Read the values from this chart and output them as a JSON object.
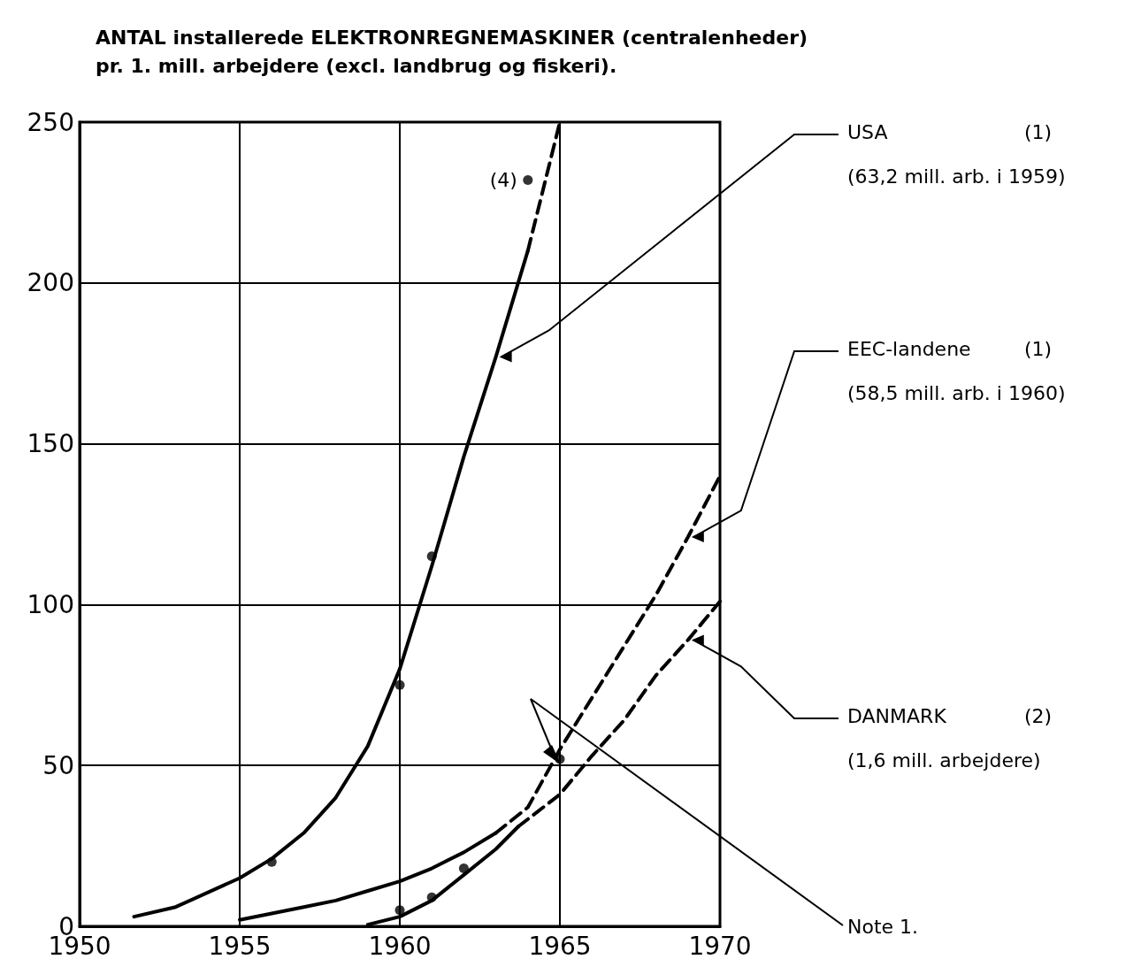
{
  "chart_data": {
    "type": "line",
    "ylabel": "ANTAL installerede ELEKTRONREGNEMASKINER (centralenheder)\npr. 1. mill. arbejdere (excl. landbrug og fiskeri).",
    "xlim": [
      1950,
      1970
    ],
    "xticks": [
      1950,
      1955,
      1960,
      1965,
      1970
    ],
    "ylim": [
      0,
      250
    ],
    "yticks": [
      0,
      50,
      100,
      150,
      200,
      250
    ],
    "grid": true,
    "legend": false,
    "marker": "none",
    "series": [
      {
        "name": "USA",
        "color": "#000000",
        "line_style": "solid",
        "x": [
          1951.7,
          1953,
          1955,
          1956,
          1957,
          1958,
          1959,
          1960,
          1961,
          1962,
          1963,
          1964
        ],
        "values": [
          3,
          6,
          15,
          21,
          29,
          40,
          56,
          80,
          112,
          146,
          177,
          210
        ]
      },
      {
        "color": "#000000",
        "line_style": "dashed",
        "x": [
          1964,
          1964.5,
          1965
        ],
        "values": [
          210,
          230,
          250
        ]
      },
      {
        "color": "#000000",
        "line_style": "solid",
        "x": [
          1955,
          1956,
          1957,
          1958,
          1959,
          1960,
          1961,
          1962,
          1963
        ],
        "values": [
          2,
          4,
          6,
          8,
          11,
          14,
          18,
          23,
          29
        ]
      },
      {
        "name": "EEC-landene",
        "color": "#000000",
        "line_style": "dashed",
        "x": [
          1963,
          1964,
          1965,
          1966,
          1967,
          1968,
          1969,
          1970
        ],
        "values": [
          29,
          37,
          55,
          71,
          87,
          103,
          121,
          140
        ]
      },
      {
        "color": "#000000",
        "line_style": "solid",
        "x": [
          1959,
          1960,
          1961,
          1962,
          1963,
          1963.7
        ],
        "values": [
          0.5,
          3,
          8,
          16,
          24,
          31
        ]
      },
      {
        "name": "DANMARK",
        "color": "#000000",
        "line_style": "dashed",
        "x": [
          1963.7,
          1965,
          1966,
          1967,
          1968,
          1969,
          1970
        ],
        "values": [
          31,
          41,
          53,
          64,
          78,
          89,
          101
        ]
      },
      {
        "type": "scatter",
        "marker": "circle",
        "color": "#000000",
        "x": [
          1956,
          1960,
          1961,
          1964,
          1960,
          1961,
          1962,
          1965
        ],
        "values": [
          20,
          75,
          115,
          232,
          5,
          9,
          18,
          52
        ]
      }
    ],
    "annotations": [
      "(1)",
      "(63,2 mill. arb. i 1959)",
      "(1)",
      "(58,5 mill. arb. i 1960)",
      "(2)",
      "(1,6 mill. arbejdere)",
      "Note 1.",
      {
        "text": "(4)",
        "x": 1964,
        "y": 232
      }
    ]
  }
}
